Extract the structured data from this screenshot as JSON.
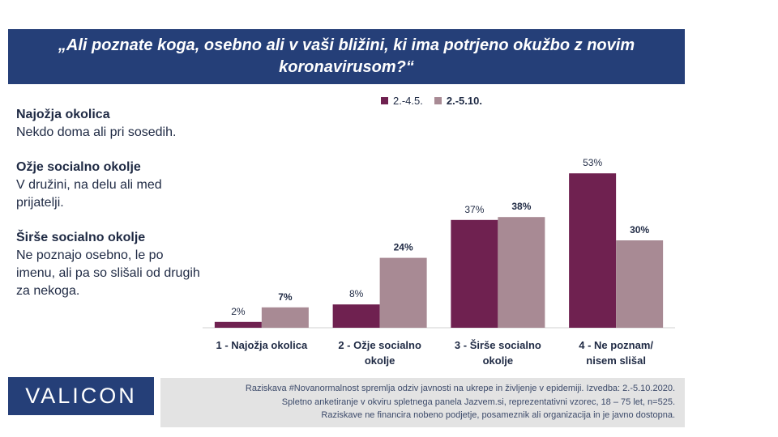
{
  "title": "„Ali poznate koga, osebno ali v vaši bližini, ki ima potrjeno okužbo z novim koronavirusom?“",
  "descriptions": [
    {
      "heading": "Najožja okolica",
      "text": "Nekdo doma ali pri sosedih."
    },
    {
      "heading": "Ožje socialno okolje",
      "text": "V družini, na delu ali med prijatelji."
    },
    {
      "heading": "Širše socialno okolje",
      "text": "Ne poznajo osebno, le po imenu, ali pa so slišali od drugih za nekoga."
    }
  ],
  "colors": {
    "title_bg": "#253f78",
    "series1": "#6f2150",
    "series2": "#a88a94",
    "note_bg": "#e3e3e3"
  },
  "chart_data": {
    "type": "bar",
    "categories": [
      [
        "1 - Najožja okolica"
      ],
      [
        "2 - Ožje socialno",
        "okolje"
      ],
      [
        "3 - Širše socialno",
        "okolje"
      ],
      [
        "4 - Ne poznam/",
        "nisem slišal"
      ]
    ],
    "series": [
      {
        "name": "2.-4.5.",
        "values": [
          2,
          8,
          37,
          53
        ],
        "labels": [
          "2%",
          "8%",
          "37%",
          "53%"
        ],
        "bold": false
      },
      {
        "name": "2.-5.10.",
        "values": [
          7,
          24,
          38,
          30
        ],
        "labels": [
          "7%",
          "24%",
          "38%",
          "30%"
        ],
        "bold": true
      }
    ],
    "legend_position": "top",
    "ylim": [
      0,
      60
    ],
    "grid": false
  },
  "logo_text": "VALICON",
  "footnote": [
    "Raziskava #Novanormalnost spremlja odziv javnosti na ukrepe in življenje v epidemiji. Izvedba: 2.-5.10.2020.",
    "Spletno anketiranje v okviru spletnega panela Jazvem.si, reprezentativni vzorec, 18 – 75 let, n=525.",
    "Raziskave ne financira nobeno podjetje, posameznik ali organizacija in je javno dostopna."
  ]
}
